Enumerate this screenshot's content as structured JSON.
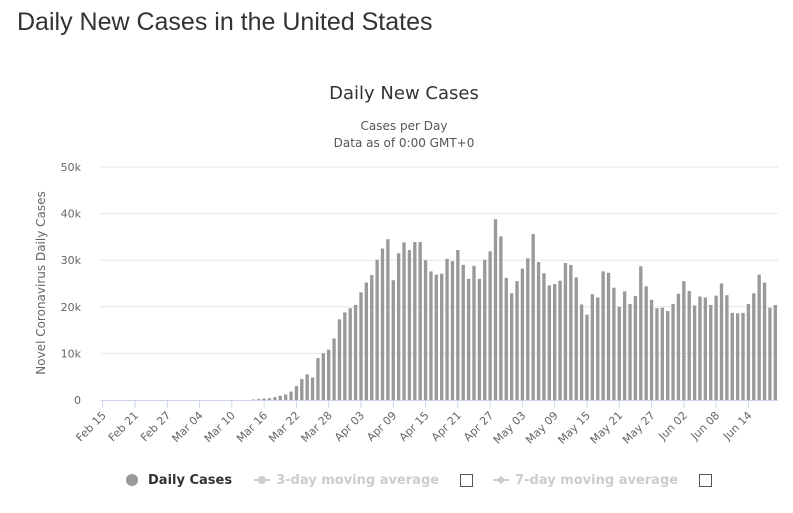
{
  "page": {
    "title": "Daily New Cases in the United States"
  },
  "legend": {
    "daily_cases": "Daily Cases",
    "ma3": "3-day moving average",
    "ma7": "7-day moving average"
  },
  "colors": {
    "bar": "#999999",
    "grid": "#e6e6e6",
    "axis": "#ccd6eb",
    "text": "#333333",
    "legend_inactive": "#cccccc"
  },
  "chart_data": {
    "type": "bar",
    "title": "Daily New Cases",
    "subtitle_line1": "Cases per Day",
    "subtitle_line2": "Data as of 0:00 GMT+0",
    "ylabel": "Novel Coronavirus Daily Cases",
    "xlabel": "",
    "ylim": [
      0,
      50000
    ],
    "yticks": [
      0,
      10000,
      20000,
      30000,
      40000,
      50000
    ],
    "ytick_labels": [
      "0",
      "10k",
      "20k",
      "30k",
      "40k",
      "50k"
    ],
    "xtick_labels": [
      "Feb 15",
      "Feb 21",
      "Feb 27",
      "Mar 04",
      "Mar 10",
      "Mar 16",
      "Mar 22",
      "Mar 28",
      "Apr 03",
      "Apr 09",
      "Apr 15",
      "Apr 21",
      "Apr 27",
      "May 03",
      "May 09",
      "May 15",
      "May 21",
      "May 27",
      "Jun 02",
      "Jun 08",
      "Jun 14"
    ],
    "xtick_step_days": 6,
    "start_date": "Feb 15",
    "end_date": "Jun 15",
    "series": [
      {
        "name": "Daily Cases",
        "values": [
          0,
          0,
          0,
          0,
          0,
          0,
          0,
          0,
          0,
          0,
          0,
          0,
          0,
          0,
          0,
          0,
          0,
          0,
          0,
          0,
          0,
          0,
          0,
          0,
          0,
          0,
          0,
          0,
          100,
          200,
          300,
          400,
          600,
          900,
          1200,
          1800,
          3000,
          4500,
          5500,
          4800,
          9000,
          10000,
          10800,
          13200,
          17300,
          18800,
          19700,
          20400,
          23100,
          25200,
          26800,
          30100,
          32500,
          34500,
          25700,
          31500,
          33800,
          32200,
          33900,
          33900,
          30000,
          27600,
          26900,
          27100,
          30300,
          29800,
          32200,
          29000,
          26000,
          28800,
          26000,
          30100,
          31900,
          38800,
          35100,
          26200,
          22900,
          25500,
          28200,
          30400,
          35600,
          29600,
          27200,
          24600,
          24900,
          25600,
          29400,
          29000,
          26300,
          20500,
          18300,
          22700,
          22000,
          27600,
          27300,
          24100,
          20000,
          23300,
          20600,
          22300,
          28700,
          24400,
          21500,
          19700,
          19800,
          19100,
          20600,
          22800,
          25500,
          23400,
          20300,
          22200,
          22000,
          20400,
          22400,
          25000,
          22500,
          18700,
          18600,
          18700,
          20600,
          22900,
          26900,
          25200,
          19800,
          20400
        ]
      },
      {
        "name": "3-day moving average",
        "visible": false
      },
      {
        "name": "7-day moving average",
        "visible": false
      }
    ]
  }
}
